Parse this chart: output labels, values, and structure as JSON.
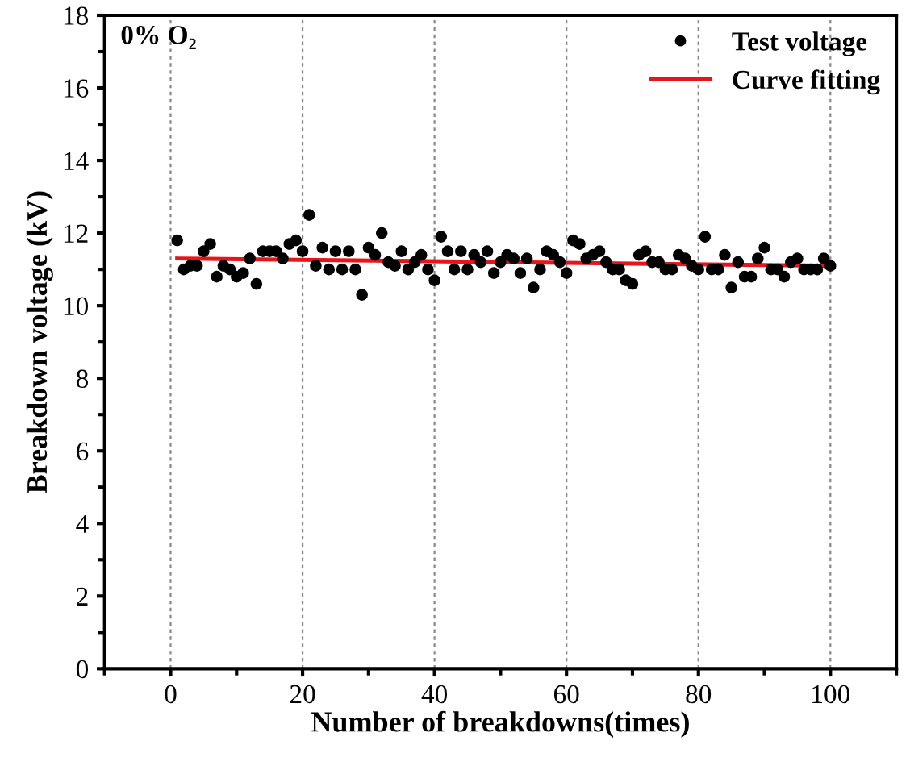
{
  "chart_data": {
    "type": "scatter",
    "xlabel": "Number of breakdowns(times)",
    "ylabel": "Breakdown voltage (kV)",
    "annotations": [
      "0% O₂"
    ],
    "series": [
      {
        "name": "Test voltage",
        "color": "#000000",
        "marker": "circle",
        "x": [
          1,
          2,
          3,
          4,
          5,
          6,
          7,
          8,
          9,
          10,
          11,
          12,
          13,
          14,
          15,
          16,
          17,
          18,
          19,
          20,
          21,
          22,
          23,
          24,
          25,
          26,
          27,
          28,
          29,
          30,
          31,
          32,
          33,
          34,
          35,
          36,
          37,
          38,
          39,
          40,
          41,
          42,
          43,
          44,
          45,
          46,
          47,
          48,
          49,
          50,
          51,
          52,
          53,
          54,
          55,
          56,
          57,
          58,
          59,
          60,
          61,
          62,
          63,
          64,
          65,
          66,
          67,
          68,
          69,
          70,
          71,
          72,
          73,
          74,
          75,
          76,
          77,
          78,
          79,
          80,
          81,
          82,
          83,
          84,
          85,
          86,
          87,
          88,
          89,
          90,
          91,
          92,
          93,
          94,
          95,
          96,
          97,
          98,
          99,
          100
        ],
        "values": [
          11.8,
          11.0,
          11.1,
          11.1,
          11.5,
          11.7,
          10.8,
          11.1,
          11.0,
          10.8,
          10.9,
          11.3,
          10.6,
          11.5,
          11.5,
          11.5,
          11.3,
          11.7,
          11.8,
          11.5,
          12.5,
          11.1,
          11.6,
          11.0,
          11.5,
          11.0,
          11.5,
          11.0,
          10.3,
          11.6,
          11.4,
          12.0,
          11.2,
          11.1,
          11.5,
          11.0,
          11.2,
          11.4,
          11.0,
          10.7,
          11.9,
          11.5,
          11.0,
          11.5,
          11.0,
          11.4,
          11.2,
          11.5,
          10.9,
          11.2,
          11.4,
          11.3,
          10.9,
          11.3,
          10.5,
          11.0,
          11.5,
          11.4,
          11.2,
          10.9,
          11.8,
          11.7,
          11.3,
          11.4,
          11.5,
          11.2,
          11.0,
          11.0,
          10.7,
          10.6,
          11.4,
          11.5,
          11.2,
          11.2,
          11.0,
          11.0,
          11.4,
          11.3,
          11.1,
          11.0,
          11.9,
          11.0,
          11.0,
          11.4,
          10.5,
          11.2,
          10.8,
          10.8,
          11.3,
          11.6,
          11.0,
          11.0,
          10.8,
          11.2,
          11.3,
          11.0,
          11.0,
          11.0,
          11.3,
          11.1
        ]
      },
      {
        "name": "Curve fitting",
        "type": "line",
        "color": "#e8141b",
        "x": [
          1,
          100
        ],
        "values": [
          11.3,
          11.1
        ]
      }
    ],
    "xlim": [
      -10,
      110
    ],
    "xticks": [
      0,
      20,
      40,
      60,
      80,
      100
    ],
    "ylim": [
      0,
      18
    ],
    "yticks": [
      0,
      2,
      4,
      6,
      8,
      10,
      12,
      14,
      16,
      18
    ],
    "grid": "x",
    "legend": "top right"
  }
}
